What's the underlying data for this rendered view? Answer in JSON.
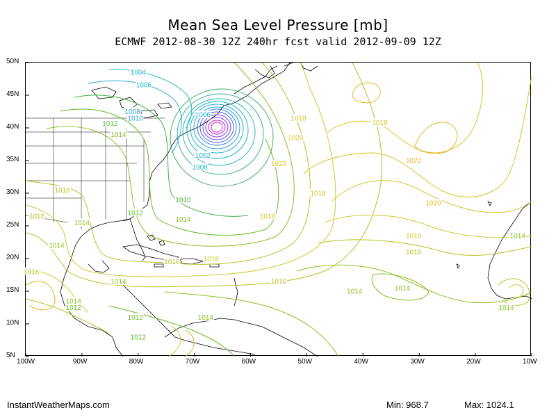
{
  "header": {
    "title": "Mean Sea Level Pressure [mb]",
    "subtitle": "ECMWF 2012-08-30 12Z 240hr fcst valid 2012-09-09 12Z"
  },
  "axes": {
    "lat_labels": [
      "50N",
      "45N",
      "40N",
      "35N",
      "30N",
      "25N",
      "20N",
      "15N",
      "10N",
      "5N"
    ],
    "lon_labels": [
      "100W",
      "90W",
      "80W",
      "70W",
      "60W",
      "50W",
      "40W",
      "30W",
      "20W",
      "10W"
    ]
  },
  "contour_labels": [
    {
      "text": "1004",
      "lon": -80.0,
      "lat": 48.5,
      "color": "#1eb8c8"
    },
    {
      "text": "1006",
      "lon": -79.0,
      "lat": 46.6,
      "color": "#1eb8c8"
    },
    {
      "text": "1008",
      "lon": -81.0,
      "lat": 42.5,
      "color": "#2ea6d6"
    },
    {
      "text": "1010",
      "lon": -80.5,
      "lat": 41.5,
      "color": "#2ea6d6"
    },
    {
      "text": "1012",
      "lon": -85.0,
      "lat": 40.7,
      "color": "#55c040"
    },
    {
      "text": "1014",
      "lon": -83.5,
      "lat": 39.0,
      "color": "#88c020"
    },
    {
      "text": "1006",
      "lon": -68.5,
      "lat": 42.0,
      "color": "#18b0d8"
    },
    {
      "text": "1002",
      "lon": -68.5,
      "lat": 35.8,
      "color": "#18b0d8"
    },
    {
      "text": "1008",
      "lon": -69.0,
      "lat": 34.0,
      "color": "#20b8b0"
    },
    {
      "text": "1010",
      "lon": -72.0,
      "lat": 29.0,
      "color": "#40b030"
    },
    {
      "text": "1012",
      "lon": -80.5,
      "lat": 27.0,
      "color": "#60bc20"
    },
    {
      "text": "1014",
      "lon": -72.0,
      "lat": 26.0,
      "color": "#88c020"
    },
    {
      "text": "1016",
      "lon": -93.5,
      "lat": 30.5,
      "color": "#b8c020"
    },
    {
      "text": "1016",
      "lon": -98.0,
      "lat": 26.5,
      "color": "#b8c020"
    },
    {
      "text": "1014",
      "lon": -90.0,
      "lat": 25.5,
      "color": "#88c020"
    },
    {
      "text": "1014",
      "lon": -94.5,
      "lat": 22.0,
      "color": "#88c020"
    },
    {
      "text": "1016",
      "lon": -99.0,
      "lat": 18.0,
      "color": "#b8c020"
    },
    {
      "text": "1014",
      "lon": -83.5,
      "lat": 16.5,
      "color": "#88c020"
    },
    {
      "text": "1014",
      "lon": -91.5,
      "lat": 13.5,
      "color": "#88c020"
    },
    {
      "text": "1012",
      "lon": -91.5,
      "lat": 12.5,
      "color": "#60bc20"
    },
    {
      "text": "1012",
      "lon": -80.5,
      "lat": 11.0,
      "color": "#60bc20"
    },
    {
      "text": "1012",
      "lon": -80.0,
      "lat": 8.0,
      "color": "#60bc20"
    },
    {
      "text": "1014",
      "lon": -68.0,
      "lat": 11.0,
      "color": "#88c020"
    },
    {
      "text": "1016",
      "lon": -74.0,
      "lat": 19.5,
      "color": "#b8c020"
    },
    {
      "text": "1018",
      "lon": -67.0,
      "lat": 20.0,
      "color": "#d2c830"
    },
    {
      "text": "1016",
      "lon": -55.0,
      "lat": 16.5,
      "color": "#b8c020"
    },
    {
      "text": "1018",
      "lon": -57.0,
      "lat": 26.5,
      "color": "#d2c830"
    },
    {
      "text": "1020",
      "lon": -52.0,
      "lat": 38.5,
      "color": "#e0c020"
    },
    {
      "text": "1020",
      "lon": -55.0,
      "lat": 34.5,
      "color": "#e0c020"
    },
    {
      "text": "1018",
      "lon": -48.0,
      "lat": 30.0,
      "color": "#d2c830"
    },
    {
      "text": "1018",
      "lon": -51.5,
      "lat": 41.5,
      "color": "#d2c830"
    },
    {
      "text": "1018",
      "lon": -37.0,
      "lat": 40.8,
      "color": "#d2c830"
    },
    {
      "text": "1022",
      "lon": -31.0,
      "lat": 35.0,
      "color": "#e8b020"
    },
    {
      "text": "1020",
      "lon": -27.5,
      "lat": 28.5,
      "color": "#e0c020"
    },
    {
      "text": "1018",
      "lon": -31.0,
      "lat": 23.5,
      "color": "#d2c830"
    },
    {
      "text": "1016",
      "lon": -31.0,
      "lat": 21.0,
      "color": "#b8c020"
    },
    {
      "text": "1014",
      "lon": -41.5,
      "lat": 15.0,
      "color": "#88c020"
    },
    {
      "text": "1014",
      "lon": -33.0,
      "lat": 15.5,
      "color": "#88c020"
    },
    {
      "text": "1014",
      "lon": -12.5,
      "lat": 23.5,
      "color": "#88c020"
    },
    {
      "text": "1014",
      "lon": -14.5,
      "lat": 12.5,
      "color": "#88c020"
    }
  ],
  "footer": {
    "site": "InstantWeatherMaps.com",
    "min_text": "Min:  968.7",
    "max_text": "Max: 1024.1"
  }
}
